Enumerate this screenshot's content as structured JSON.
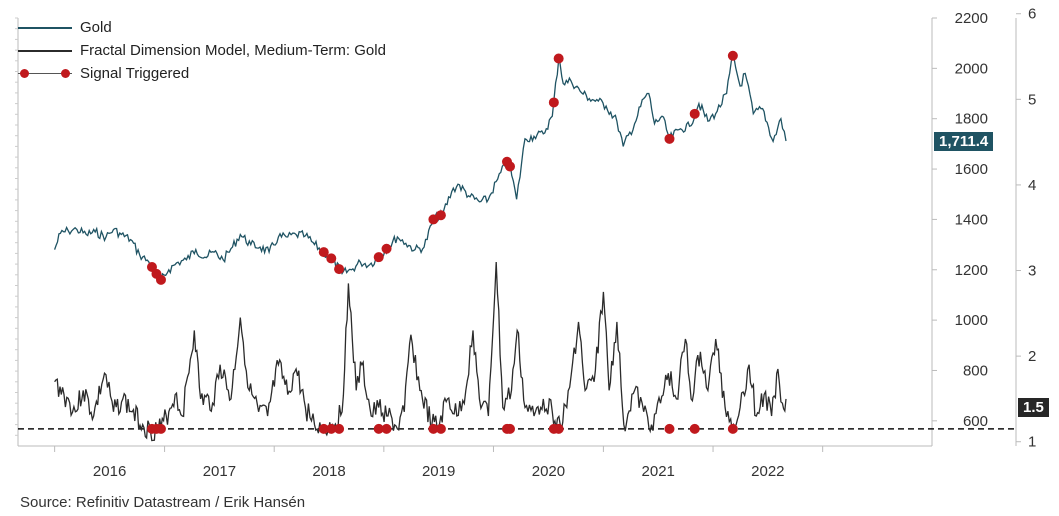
{
  "legend": {
    "gold": "Gold",
    "fdm": "Fractal Dimension Model, Medium-Term: Gold",
    "signal": "Signal Triggered"
  },
  "tags": {
    "gold_last": "1,711.4",
    "fdm_last": "1.5"
  },
  "source": "Source: Refinitiv Datastream / Erik Hansén",
  "colors": {
    "gold": "#1f5363",
    "fdm": "#2b2b2b",
    "signal": "#c0191d",
    "gold_tag_bg": "#1f5363",
    "fdm_tag_bg": "#262626"
  },
  "chart_data": {
    "type": "line",
    "x_tick_labels": [
      "2016",
      "2017",
      "2018",
      "2019",
      "2020",
      "2021",
      "2022"
    ],
    "y_left": {
      "ticks": [
        600,
        800,
        1000,
        1200,
        1400,
        1600,
        1800,
        2000,
        2200
      ],
      "range": [
        500,
        2200
      ]
    },
    "y_right": {
      "ticks": [
        1,
        2,
        3,
        4,
        5,
        6
      ],
      "range": [
        0.95,
        5.95
      ]
    },
    "threshold_right": 1.15,
    "series": [
      {
        "name": "Gold",
        "axis": "left",
        "values": [
          [
            "2016-01-01",
            1280
          ],
          [
            "2016-01-20",
            1345
          ],
          [
            "2016-02-15",
            1355
          ],
          [
            "2016-03-15",
            1360
          ],
          [
            "2016-04-15",
            1340
          ],
          [
            "2016-05-15",
            1350
          ],
          [
            "2016-06-20",
            1330
          ],
          [
            "2016-07-15",
            1360
          ],
          [
            "2016-08-10",
            1340
          ],
          [
            "2016-09-10",
            1320
          ],
          [
            "2016-10-10",
            1260
          ],
          [
            "2016-11-10",
            1230
          ],
          [
            "2016-12-01",
            1190
          ],
          [
            "2016-12-20",
            1160
          ],
          [
            "2017-01-15",
            1200
          ],
          [
            "2017-02-15",
            1230
          ],
          [
            "2017-03-15",
            1240
          ],
          [
            "2017-04-15",
            1280
          ],
          [
            "2017-05-15",
            1250
          ],
          [
            "2017-06-15",
            1270
          ],
          [
            "2017-07-15",
            1240
          ],
          [
            "2017-08-15",
            1290
          ],
          [
            "2017-09-10",
            1340
          ],
          [
            "2017-10-15",
            1300
          ],
          [
            "2017-11-15",
            1290
          ],
          [
            "2017-12-15",
            1270
          ],
          [
            "2018-01-15",
            1330
          ],
          [
            "2018-02-15",
            1330
          ],
          [
            "2018-03-15",
            1340
          ],
          [
            "2018-04-15",
            1335
          ],
          [
            "2018-05-15",
            1300
          ],
          [
            "2018-06-15",
            1270
          ],
          [
            "2018-07-15",
            1240
          ],
          [
            "2018-08-15",
            1185
          ],
          [
            "2018-09-15",
            1200
          ],
          [
            "2018-10-15",
            1230
          ],
          [
            "2018-11-15",
            1220
          ],
          [
            "2018-12-15",
            1250
          ],
          [
            "2019-01-15",
            1290
          ],
          [
            "2019-02-15",
            1330
          ],
          [
            "2019-03-15",
            1305
          ],
          [
            "2019-04-15",
            1280
          ],
          [
            "2019-05-15",
            1290
          ],
          [
            "2019-06-15",
            1400
          ],
          [
            "2019-07-15",
            1420
          ],
          [
            "2019-08-15",
            1510
          ],
          [
            "2019-09-05",
            1540
          ],
          [
            "2019-10-15",
            1490
          ],
          [
            "2019-11-15",
            1470
          ],
          [
            "2019-12-15",
            1480
          ],
          [
            "2020-01-15",
            1560
          ],
          [
            "2020-02-20",
            1640
          ],
          [
            "2020-03-18",
            1480
          ],
          [
            "2020-04-15",
            1720
          ],
          [
            "2020-05-15",
            1730
          ],
          [
            "2020-06-15",
            1740
          ],
          [
            "2020-07-15",
            1810
          ],
          [
            "2020-08-06",
            2050
          ],
          [
            "2020-08-20",
            1940
          ],
          [
            "2020-09-15",
            1950
          ],
          [
            "2020-10-15",
            1910
          ],
          [
            "2020-11-15",
            1880
          ],
          [
            "2020-12-15",
            1870
          ],
          [
            "2021-01-10",
            1850
          ],
          [
            "2021-02-15",
            1790
          ],
          [
            "2021-03-08",
            1690
          ],
          [
            "2021-04-15",
            1780
          ],
          [
            "2021-05-15",
            1880
          ],
          [
            "2021-06-01",
            1900
          ],
          [
            "2021-06-20",
            1780
          ],
          [
            "2021-07-15",
            1810
          ],
          [
            "2021-08-09",
            1720
          ],
          [
            "2021-09-15",
            1760
          ],
          [
            "2021-10-15",
            1770
          ],
          [
            "2021-11-15",
            1860
          ],
          [
            "2021-12-15",
            1790
          ],
          [
            "2022-01-15",
            1830
          ],
          [
            "2022-02-15",
            1900
          ],
          [
            "2022-03-08",
            2050
          ],
          [
            "2022-04-01",
            1930
          ],
          [
            "2022-04-18",
            1980
          ],
          [
            "2022-05-15",
            1820
          ],
          [
            "2022-06-15",
            1840
          ],
          [
            "2022-07-20",
            1710
          ],
          [
            "2022-08-15",
            1800
          ],
          [
            "2022-09-01",
            1711.4
          ]
        ]
      },
      {
        "name": "Fractal Dimension Model, Medium-Term: Gold",
        "axis": "right",
        "values": [
          [
            "2016-01-01",
            1.7
          ],
          [
            "2016-02-01",
            1.55
          ],
          [
            "2016-03-10",
            1.35
          ],
          [
            "2016-04-05",
            1.6
          ],
          [
            "2016-05-10",
            1.3
          ],
          [
            "2016-06-15",
            1.8
          ],
          [
            "2016-07-15",
            1.35
          ],
          [
            "2016-08-15",
            1.5
          ],
          [
            "2016-09-15",
            1.35
          ],
          [
            "2016-10-20",
            1.2
          ],
          [
            "2016-11-15",
            1.12
          ],
          [
            "2016-12-20",
            1.16
          ],
          [
            "2017-01-15",
            1.35
          ],
          [
            "2017-02-05",
            1.55
          ],
          [
            "2017-03-01",
            1.3
          ],
          [
            "2017-04-10",
            2.3
          ],
          [
            "2017-05-01",
            1.5
          ],
          [
            "2017-06-10",
            1.45
          ],
          [
            "2017-07-05",
            1.9
          ],
          [
            "2017-08-10",
            1.5
          ],
          [
            "2017-09-10",
            2.45
          ],
          [
            "2017-10-10",
            1.6
          ],
          [
            "2017-11-10",
            1.35
          ],
          [
            "2017-12-10",
            1.3
          ],
          [
            "2018-01-15",
            1.9
          ],
          [
            "2018-02-15",
            1.55
          ],
          [
            "2018-03-15",
            1.85
          ],
          [
            "2018-04-15",
            1.4
          ],
          [
            "2018-05-15",
            1.2
          ],
          [
            "2018-06-15",
            1.15
          ],
          [
            "2018-07-15",
            1.2
          ],
          [
            "2018-08-15",
            1.35
          ],
          [
            "2018-09-05",
            2.85
          ],
          [
            "2018-10-01",
            1.6
          ],
          [
            "2018-10-20",
            1.9
          ],
          [
            "2018-11-20",
            1.3
          ],
          [
            "2018-12-15",
            1.4
          ],
          [
            "2019-01-15",
            1.3
          ],
          [
            "2019-02-15",
            1.15
          ],
          [
            "2019-03-10",
            1.35
          ],
          [
            "2019-04-01",
            2.25
          ],
          [
            "2019-05-01",
            1.6
          ],
          [
            "2019-06-10",
            1.2
          ],
          [
            "2019-07-01",
            1.18
          ],
          [
            "2019-08-01",
            1.5
          ],
          [
            "2019-09-01",
            1.3
          ],
          [
            "2019-10-01",
            1.6
          ],
          [
            "2019-10-25",
            2.3
          ],
          [
            "2019-11-15",
            1.5
          ],
          [
            "2019-12-15",
            1.3
          ],
          [
            "2020-01-10",
            3.1
          ],
          [
            "2020-02-01",
            1.4
          ],
          [
            "2020-03-01",
            1.6
          ],
          [
            "2020-03-20",
            2.3
          ],
          [
            "2020-04-15",
            1.4
          ],
          [
            "2020-05-15",
            1.3
          ],
          [
            "2020-06-15",
            1.5
          ],
          [
            "2020-07-15",
            1.35
          ],
          [
            "2020-08-10",
            1.2
          ],
          [
            "2020-09-01",
            1.4
          ],
          [
            "2020-10-10",
            2.4
          ],
          [
            "2020-11-01",
            1.6
          ],
          [
            "2020-12-01",
            1.7
          ],
          [
            "2021-01-01",
            2.75
          ],
          [
            "2021-01-20",
            1.6
          ],
          [
            "2021-02-15",
            2.4
          ],
          [
            "2021-03-10",
            1.2
          ],
          [
            "2021-04-15",
            1.6
          ],
          [
            "2021-05-15",
            1.35
          ],
          [
            "2021-06-10",
            1.2
          ],
          [
            "2021-07-10",
            1.45
          ],
          [
            "2021-08-05",
            1.8
          ],
          [
            "2021-09-01",
            1.5
          ],
          [
            "2021-10-01",
            2.2
          ],
          [
            "2021-10-20",
            1.5
          ],
          [
            "2021-11-20",
            2.05
          ],
          [
            "2021-12-15",
            1.6
          ],
          [
            "2022-01-10",
            2.2
          ],
          [
            "2022-02-10",
            1.4
          ],
          [
            "2022-03-10",
            1.2
          ],
          [
            "2022-04-01",
            1.4
          ],
          [
            "2022-05-01",
            1.9
          ],
          [
            "2022-05-25",
            1.3
          ],
          [
            "2022-06-20",
            1.55
          ],
          [
            "2022-07-15",
            1.3
          ],
          [
            "2022-08-05",
            1.85
          ],
          [
            "2022-08-20",
            1.45
          ],
          [
            "2022-09-01",
            1.5
          ]
        ]
      }
    ],
    "signals": [
      "2016-11-20",
      "2016-12-05",
      "2016-12-20",
      "2018-06-15",
      "2018-07-10",
      "2018-08-05",
      "2018-12-15",
      "2019-01-10",
      "2019-06-15",
      "2019-07-10",
      "2020-02-15",
      "2020-02-25",
      "2020-07-20",
      "2020-08-05",
      "2021-08-09",
      "2021-11-01",
      "2022-03-08"
    ]
  }
}
